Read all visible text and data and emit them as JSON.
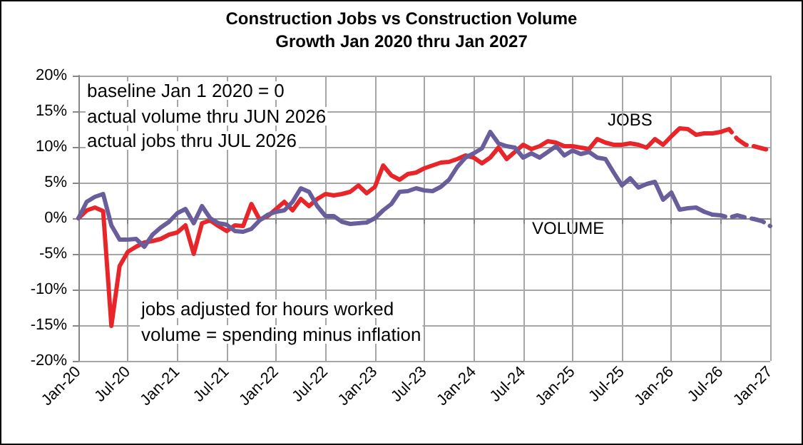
{
  "chart_data": {
    "type": "line",
    "title": "Construction Jobs vs Construction Volume",
    "subtitle": "Growth Jan 2020 thru Jan 2027",
    "categories": [
      "Jan-20",
      null,
      null,
      null,
      null,
      null,
      "Jul-20",
      null,
      null,
      null,
      null,
      null,
      "Jan-21",
      null,
      null,
      null,
      null,
      null,
      "Jul-21",
      null,
      null,
      null,
      null,
      null,
      "Jan-22",
      null,
      null,
      null,
      null,
      null,
      "Jul-22",
      null,
      null,
      null,
      null,
      null,
      "Jan-23",
      null,
      null,
      null,
      null,
      null,
      "Jul-23",
      null,
      null,
      null,
      null,
      null,
      "Jan-24",
      null,
      null,
      null,
      null,
      null,
      "Jul-24",
      null,
      null,
      null,
      null,
      null,
      "Jan-25",
      null,
      null,
      null,
      null,
      null,
      "Jul-25",
      null,
      null,
      null,
      null,
      null,
      "Jan-26",
      null,
      null,
      null,
      null,
      null,
      "Jul-26",
      null,
      null,
      null,
      null,
      null,
      "Jan-27"
    ],
    "series": [
      {
        "name": "JOBS",
        "color": "#e8262a",
        "values": [
          0,
          1.1,
          1.5,
          1.0,
          -15.1,
          -6.7,
          -4.7,
          -4,
          -3.4,
          -3.2,
          -2.9,
          -2.3,
          -2,
          -1,
          -5,
          -0.7,
          -0.3,
          -1.1,
          -1.8,
          -1,
          -1.1,
          2,
          -0.2,
          0.3,
          1.3,
          2.3,
          1.1,
          2.7,
          1.7,
          2.7,
          3.4,
          3.2,
          3.4,
          3.7,
          4.6,
          3.5,
          4.4,
          7.4,
          6,
          5.4,
          6.2,
          6.4,
          7,
          7.4,
          7.8,
          7.9,
          8.3,
          8.8,
          8.5,
          7.7,
          8.5,
          9.9,
          8.3,
          9.3,
          10.3,
          9.7,
          10.1,
          10.8,
          10.6,
          10.1,
          10.1,
          9.9,
          9.7,
          11.1,
          10.6,
          10.3,
          10.3,
          10.5,
          10.3,
          9.9,
          11.1,
          10.3,
          11.5,
          12.6,
          12.5,
          11.7,
          11.9,
          11.9,
          12.1,
          null,
          null,
          null,
          null,
          null,
          null
        ]
      },
      {
        "color": "#e8262a",
        "line_style": "dashed",
        "values": [
          null,
          null,
          null,
          null,
          null,
          null,
          null,
          null,
          null,
          null,
          null,
          null,
          null,
          null,
          null,
          null,
          null,
          null,
          null,
          null,
          null,
          null,
          null,
          null,
          null,
          null,
          null,
          null,
          null,
          null,
          null,
          null,
          null,
          null,
          null,
          null,
          null,
          null,
          null,
          null,
          null,
          null,
          null,
          null,
          null,
          null,
          null,
          null,
          null,
          null,
          null,
          null,
          null,
          null,
          null,
          null,
          null,
          null,
          null,
          null,
          null,
          null,
          null,
          null,
          null,
          null,
          null,
          null,
          null,
          null,
          null,
          null,
          null,
          null,
          null,
          null,
          null,
          null,
          12.1,
          12.5,
          11.1,
          10.3,
          10.1,
          9.8,
          9.5
        ]
      },
      {
        "name": "VOLUME",
        "color": "#6a5d9c",
        "values": [
          0,
          2.3,
          3,
          3.4,
          -1,
          -3,
          -3,
          -2.9,
          -4,
          -2.3,
          -1.3,
          -0.5,
          0.7,
          1.3,
          -0.7,
          1.7,
          0,
          -0.7,
          -0.9,
          -1.8,
          -1.9,
          -1.5,
          -0.3,
          0.5,
          0.9,
          1.1,
          2.3,
          4.2,
          3.7,
          1.7,
          0.3,
          0.3,
          -0.5,
          -0.8,
          -0.7,
          -0.6,
          0,
          1.1,
          2,
          3.7,
          3.8,
          4.2,
          3.9,
          3.8,
          4.4,
          5.4,
          7.2,
          8.5,
          9.1,
          9.8,
          12.1,
          10.5,
          10.1,
          9.9,
          8.5,
          9.1,
          8.5,
          9.3,
          10.1,
          8.8,
          9.5,
          9,
          9.3,
          8.5,
          8.3,
          6.4,
          4.6,
          5.6,
          4.3,
          4.8,
          5.1,
          2.6,
          3.6,
          1.2,
          1.4,
          1.5,
          0.9,
          0.5,
          null,
          null,
          null,
          null,
          null,
          null,
          null
        ]
      },
      {
        "color": "#6a5d9c",
        "line_style": "dashed",
        "values": [
          null,
          null,
          null,
          null,
          null,
          null,
          null,
          null,
          null,
          null,
          null,
          null,
          null,
          null,
          null,
          null,
          null,
          null,
          null,
          null,
          null,
          null,
          null,
          null,
          null,
          null,
          null,
          null,
          null,
          null,
          null,
          null,
          null,
          null,
          null,
          null,
          null,
          null,
          null,
          null,
          null,
          null,
          null,
          null,
          null,
          null,
          null,
          null,
          null,
          null,
          null,
          null,
          null,
          null,
          null,
          null,
          null,
          null,
          null,
          null,
          null,
          null,
          null,
          null,
          null,
          null,
          null,
          null,
          null,
          null,
          null,
          null,
          null,
          null,
          null,
          null,
          null,
          0.5,
          0.4,
          0.1,
          0.4,
          0.1,
          -0.1,
          -0.4,
          -1.1
        ]
      }
    ],
    "ylim": [
      -20,
      20
    ],
    "yticks": [
      {
        "value": -20,
        "label": "-20%"
      },
      {
        "value": -15,
        "label": "-15%"
      },
      {
        "value": -10,
        "label": "-10%"
      },
      {
        "value": -5,
        "label": "-5%"
      },
      {
        "value": 0,
        "label": "0%"
      },
      {
        "value": 5,
        "label": "5%"
      },
      {
        "value": 10,
        "label": "10%"
      },
      {
        "value": 15,
        "label": "15%"
      },
      {
        "value": 20,
        "label": "20%"
      }
    ],
    "grid": true,
    "marker": "none",
    "line_style": "solid",
    "annotations": [
      "baseline Jan 1 2020 = 0",
      "actual volume thru JUN 2026",
      "actual jobs thru JUL 2026",
      "jobs adjusted for hours worked",
      "volume = spending minus inflation"
    ]
  }
}
